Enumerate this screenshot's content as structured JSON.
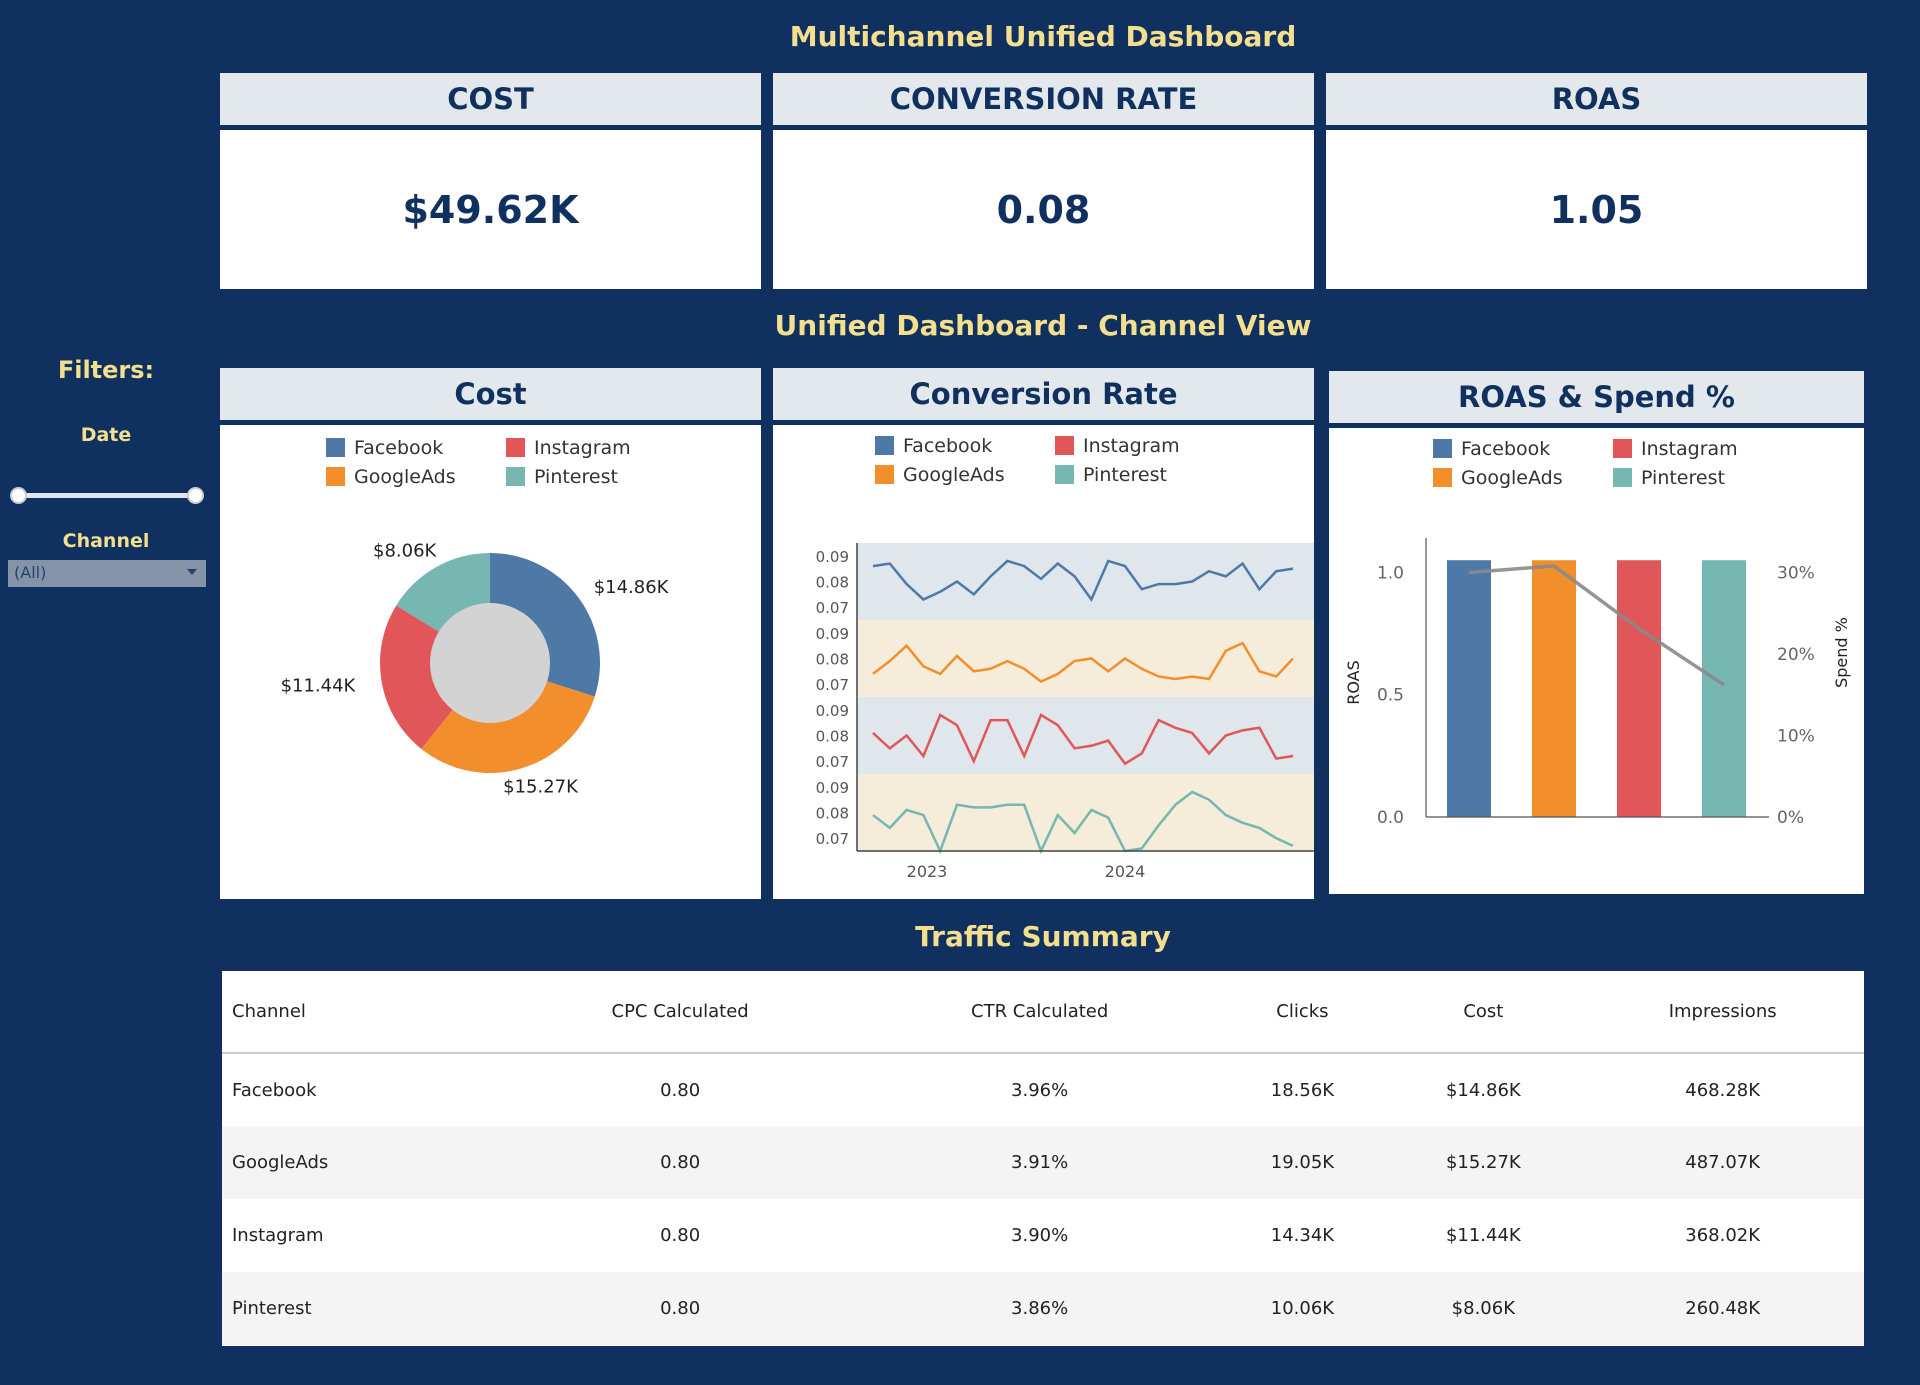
{
  "dashboard": {
    "title": "Multichannel Unified Dashboard",
    "section_title": "Unified Dashboard - Channel View",
    "table_title": "Traffic Summary"
  },
  "filters": {
    "title": "Filters:",
    "date_label": "Date",
    "channel_label": "Channel",
    "channel_value": "(All)"
  },
  "kpis": [
    {
      "label": "COST",
      "value": "$49.62K"
    },
    {
      "label": "CONVERSION RATE",
      "value": "0.08"
    },
    {
      "label": "ROAS",
      "value": "1.05"
    }
  ],
  "colors": {
    "Facebook": "#4e79a7",
    "GoogleAds": "#f28e2b",
    "Instagram": "#e15759",
    "Pinterest": "#76b7b2",
    "band_a": "#dfe7ec",
    "band_b": "#f5ecd9"
  },
  "legend": [
    "Facebook",
    "Instagram",
    "GoogleAds",
    "Pinterest"
  ],
  "chart_data": [
    {
      "type": "pie",
      "title": "Cost",
      "categories": [
        "Facebook",
        "GoogleAds",
        "Instagram",
        "Pinterest"
      ],
      "values": [
        14.86,
        15.27,
        11.44,
        8.06
      ],
      "labels": [
        "$14.86K",
        "$15.27K",
        "$11.44K",
        "$8.06K"
      ]
    },
    {
      "type": "line",
      "title": "Conversion Rate",
      "xticks": [
        "2023",
        "2024"
      ],
      "yticks": [
        "0.09",
        "0.08",
        "0.07"
      ],
      "ylim": [
        0.065,
        0.095
      ],
      "series": [
        {
          "name": "Facebook",
          "values": [
            0.086,
            0.087,
            0.079,
            0.073,
            0.076,
            0.08,
            0.075,
            0.082,
            0.088,
            0.086,
            0.081,
            0.087,
            0.082,
            0.073,
            0.088,
            0.086,
            0.077,
            0.079,
            0.079,
            0.08,
            0.084,
            0.082,
            0.087,
            0.077,
            0.084,
            0.085
          ]
        },
        {
          "name": "GoogleAds",
          "values": [
            0.074,
            0.079,
            0.085,
            0.077,
            0.074,
            0.081,
            0.075,
            0.076,
            0.079,
            0.076,
            0.071,
            0.074,
            0.079,
            0.08,
            0.075,
            0.08,
            0.076,
            0.073,
            0.072,
            0.073,
            0.072,
            0.083,
            0.086,
            0.075,
            0.073,
            0.08
          ]
        },
        {
          "name": "Instagram",
          "values": [
            0.081,
            0.075,
            0.08,
            0.072,
            0.088,
            0.084,
            0.07,
            0.086,
            0.086,
            0.072,
            0.088,
            0.084,
            0.075,
            0.076,
            0.078,
            0.069,
            0.073,
            0.086,
            0.083,
            0.081,
            0.073,
            0.08,
            0.082,
            0.083,
            0.071,
            0.072
          ]
        },
        {
          "name": "Pinterest",
          "values": [
            0.079,
            0.074,
            0.081,
            0.079,
            0.065,
            0.083,
            0.082,
            0.082,
            0.083,
            0.083,
            0.065,
            0.079,
            0.072,
            0.081,
            0.078,
            0.065,
            0.066,
            0.075,
            0.083,
            0.088,
            0.085,
            0.079,
            0.076,
            0.074,
            0.07,
            0.067
          ]
        }
      ]
    },
    {
      "type": "bar",
      "title": "ROAS & Spend %",
      "categories": [
        "Facebook",
        "GoogleAds",
        "Instagram",
        "Pinterest"
      ],
      "values": [
        1.05,
        1.05,
        1.05,
        1.05
      ],
      "ylabel": "ROAS",
      "yticks": [
        "0.0",
        "0.5",
        "1.0"
      ],
      "ylim": [
        0,
        1.1
      ],
      "secondary": {
        "ylabel": "Spend %",
        "yticks": [
          "0%",
          "10%",
          "20%",
          "30%"
        ],
        "ylim": [
          0,
          33
        ],
        "values": [
          30.0,
          30.8,
          23.1,
          16.2
        ]
      }
    },
    {
      "type": "table",
      "title": "Traffic Summary",
      "columns": [
        "Channel",
        "CPC Calculated",
        "CTR Calculated",
        "Clicks",
        "Cost",
        "Impressions"
      ],
      "rows": [
        [
          "Facebook",
          "0.80",
          "3.96%",
          "18.56K",
          "$14.86K",
          "468.28K"
        ],
        [
          "GoogleAds",
          "0.80",
          "3.91%",
          "19.05K",
          "$15.27K",
          "487.07K"
        ],
        [
          "Instagram",
          "0.80",
          "3.90%",
          "14.34K",
          "$11.44K",
          "368.02K"
        ],
        [
          "Pinterest",
          "0.80",
          "3.86%",
          "10.06K",
          "$8.06K",
          "260.48K"
        ]
      ]
    }
  ]
}
